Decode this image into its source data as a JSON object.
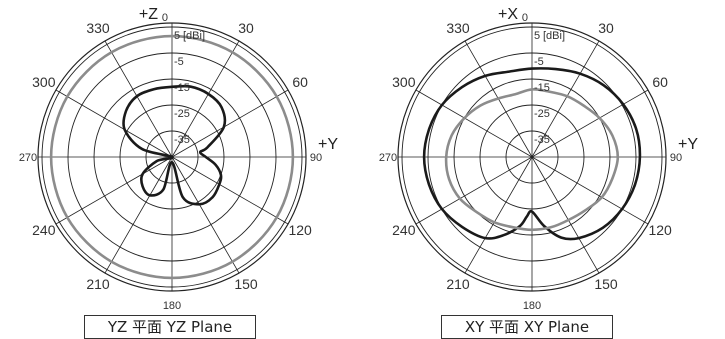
{
  "chart_data": [
    {
      "type": "polar",
      "caption": "YZ 平面  YZ Plane",
      "top_axis_label": "+Z",
      "right_axis_label": "+Y",
      "unit_label": "[dBi]",
      "radial_ticks": [
        "5",
        "-5",
        "-15",
        "-25",
        "-35"
      ],
      "radial_range_dBi": [
        -45,
        5
      ],
      "angle_labels": [
        "0",
        "30",
        "60",
        "90",
        "120",
        "150",
        "180",
        "210",
        "240",
        "270",
        "300",
        "330"
      ],
      "series": [
        {
          "color": "#8c8c8c",
          "angle_deg": [
            0,
            30,
            60,
            90,
            120,
            150,
            180,
            210,
            240,
            270,
            300,
            330
          ],
          "gain_dBi": [
            1.5,
            1.5,
            1.5,
            1.5,
            1.5,
            1.5,
            1.5,
            1.5,
            1.5,
            1.5,
            1.5,
            1.5
          ]
        },
        {
          "color": "#1a1a1a",
          "angle_deg": [
            0,
            15,
            30,
            45,
            60,
            75,
            80,
            90,
            100,
            110,
            120,
            135,
            150,
            165,
            180,
            195,
            210,
            225,
            240,
            255,
            270,
            285,
            300,
            315,
            330,
            345
          ],
          "gain_dBi": [
            -18,
            -17,
            -17,
            -18,
            -22,
            -31,
            -34,
            -32,
            -28,
            -25,
            -24,
            -23,
            -24,
            -29,
            -43,
            -32,
            -28,
            -29,
            -32,
            -39,
            -45,
            -33,
            -24,
            -20,
            -18,
            -18
          ]
        }
      ]
    },
    {
      "type": "polar",
      "caption": "XY 平面  XY Plane",
      "top_axis_label": "+X",
      "right_axis_label": "+Y",
      "unit_label": "[dBi]",
      "radial_ticks": [
        "5",
        "-5",
        "-15",
        "-25",
        "-35"
      ],
      "radial_range_dBi": [
        -45,
        5
      ],
      "angle_labels": [
        "0",
        "30",
        "60",
        "90",
        "120",
        "150",
        "180",
        "210",
        "240",
        "270",
        "300",
        "330"
      ],
      "series": [
        {
          "color": "#1a1a1a",
          "angle_deg": [
            0,
            15,
            30,
            45,
            60,
            75,
            90,
            105,
            120,
            135,
            150,
            160,
            170,
            180,
            185,
            190,
            200,
            210,
            225,
            240,
            255,
            270,
            285,
            300,
            315,
            330,
            345
          ],
          "gain_dBi": [
            -11,
            -10,
            -8,
            -6,
            -4.5,
            -3.5,
            -3.5,
            -4,
            -5,
            -6.5,
            -9,
            -12,
            -18,
            -24,
            -22,
            -18,
            -13,
            -9,
            -7,
            -5,
            -4,
            -3.5,
            -4,
            -5,
            -7,
            -9,
            -11
          ]
        },
        {
          "color": "#8c8c8c",
          "angle_deg": [
            0,
            15,
            30,
            45,
            60,
            75,
            90,
            105,
            120,
            135,
            150,
            165,
            180,
            195,
            210,
            225,
            240,
            255,
            270,
            285,
            300,
            315,
            330,
            345
          ],
          "gain_dBi": [
            -19,
            -19,
            -18,
            -17,
            -15,
            -13,
            -12,
            -13,
            -14,
            -16,
            -17,
            -17,
            -17,
            -17,
            -16,
            -15,
            -13,
            -12,
            -12,
            -13,
            -15,
            -17,
            -19,
            -20
          ]
        }
      ]
    }
  ]
}
